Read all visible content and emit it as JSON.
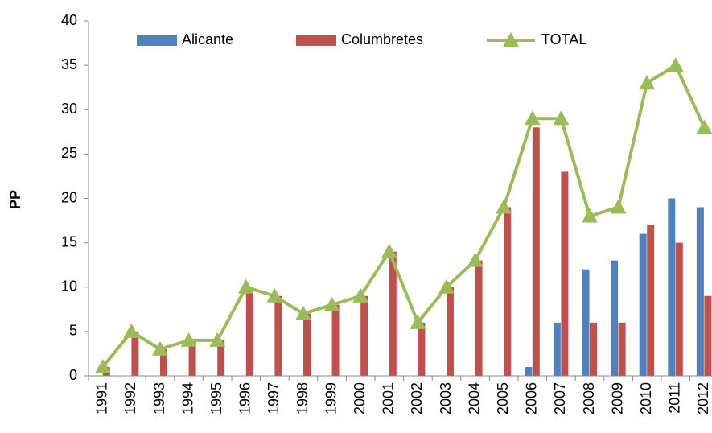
{
  "chart_data": {
    "type": "bar_line",
    "y_label": "PP",
    "categories": [
      "1991",
      "1992",
      "1993",
      "1994",
      "1995",
      "1996",
      "1997",
      "1998",
      "1999",
      "2000",
      "2001",
      "2002",
      "2003",
      "2004",
      "2005",
      "2006",
      "2007",
      "2008",
      "2009",
      "2010",
      "2011",
      "2012"
    ],
    "series": [
      {
        "name": "Alicante",
        "type": "bar",
        "color": "#4f81bd",
        "values": [
          0,
          0,
          0,
          0,
          0,
          0,
          0,
          0,
          0,
          0,
          0,
          0,
          0,
          0,
          0,
          1,
          6,
          12,
          13,
          16,
          20,
          19
        ]
      },
      {
        "name": "Columbretes",
        "type": "bar",
        "color": "#c0504d",
        "values": [
          1,
          5,
          3,
          4,
          4,
          10,
          9,
          7,
          8,
          9,
          14,
          6,
          10,
          13,
          19,
          28,
          23,
          6,
          6,
          17,
          15,
          9
        ]
      },
      {
        "name": "TOTAL",
        "type": "line",
        "color": "#9bbb59",
        "values": [
          1,
          5,
          3,
          4,
          4,
          10,
          9,
          7,
          8,
          9,
          14,
          6,
          10,
          13,
          19,
          29,
          29,
          18,
          19,
          33,
          35,
          28
        ]
      }
    ],
    "ylim": [
      0,
      40
    ],
    "yticks": [
      0,
      5,
      10,
      15,
      20,
      25,
      30,
      35,
      40
    ],
    "grid": false
  }
}
